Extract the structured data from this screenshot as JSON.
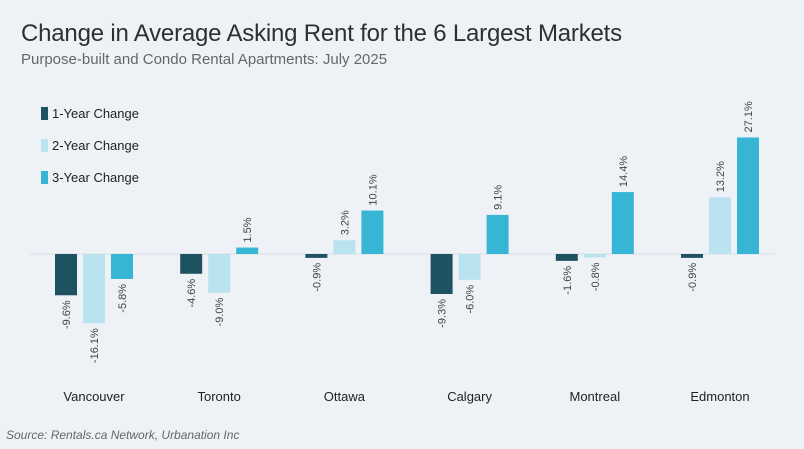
{
  "header": {
    "title": "Change in Average Asking Rent for the 6 Largest Markets",
    "subtitle": "Purpose-built and Condo Rental Apartments: July 2025"
  },
  "footer": {
    "source": "Source: Rentals.ca Network, Urbanation Inc"
  },
  "colors": {
    "background": "#eef2f7",
    "series": [
      "#1e5261",
      "#b9e3ee",
      "#37b5d4"
    ],
    "baseline": "#d6dde4"
  },
  "chart_data": {
    "type": "bar",
    "title": "Change in Average Asking Rent for the 6 Largest Markets",
    "subtitle": "Purpose-built and Condo Rental Apartments: July 2025",
    "categories": [
      "Vancouver",
      "Toronto",
      "Ottawa",
      "Calgary",
      "Montreal",
      "Edmonton"
    ],
    "series": [
      {
        "name": "1-Year Change",
        "values": [
          -9.6,
          -4.6,
          -0.9,
          -9.3,
          -1.6,
          -0.9
        ]
      },
      {
        "name": "2-Year Change",
        "values": [
          -16.1,
          -9.0,
          3.2,
          -6.0,
          -0.8,
          13.2
        ]
      },
      {
        "name": "3-Year Change",
        "values": [
          -5.8,
          1.5,
          10.1,
          9.1,
          14.4,
          27.1
        ]
      }
    ],
    "value_suffix": "%",
    "ylim": [
      -16.1,
      27.1
    ],
    "legend_position": "top-left",
    "grid": false,
    "data_labels": true
  }
}
